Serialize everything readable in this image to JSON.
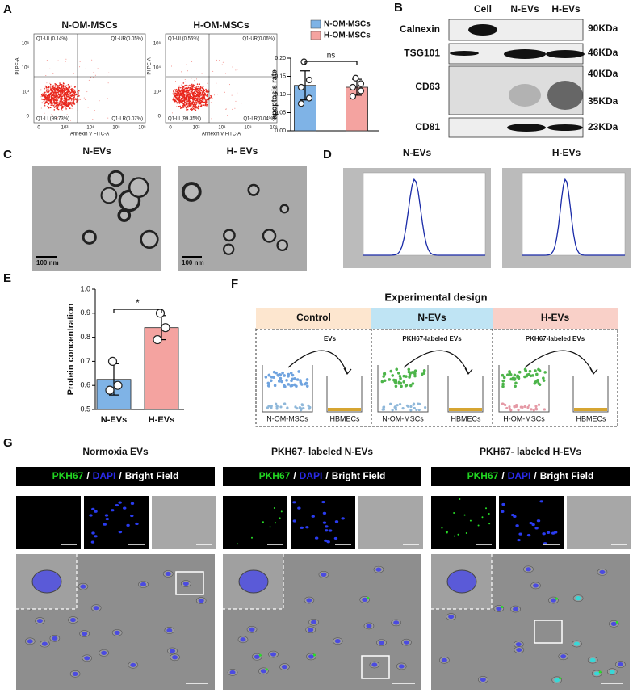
{
  "panel_letters": [
    "A",
    "B",
    "C",
    "D",
    "E",
    "F",
    "G"
  ],
  "flow": {
    "plots": [
      {
        "title": "N-OM-MSCs",
        "quadrants": [
          "Q1-UL(0.14%)",
          "Q1-UR(0.05%)",
          "Q1-LL(99.73%)",
          "Q1-LR(0.07%)"
        ]
      },
      {
        "title": "H-OM-MSCs",
        "quadrants": [
          "Q1-UL(0.56%)",
          "Q1-UR(0.06%)",
          "Q1-LL(99.35%)",
          "Q1-LR(0.04%)"
        ]
      }
    ],
    "x_label": "Annexin V FITC-A",
    "y_label": "PI PE-A",
    "x_ticks": [
      "0",
      "10³",
      "10⁴",
      "10⁵",
      "10⁶"
    ],
    "y_ticks": [
      "10⁵",
      "10⁴",
      "10³",
      "0"
    ]
  },
  "chart_data": [
    {
      "type": "bar",
      "ylabel": "apoptosis rate",
      "categories": [
        "N-OM-MSCs",
        "H-OM-MSCs"
      ],
      "colors": [
        "#7fb3e6",
        "#f4a3a0"
      ],
      "values": [
        0.125,
        0.12
      ],
      "errors": [
        0.04,
        0.022
      ],
      "points": [
        [
          0.19,
          0.14,
          0.12,
          0.09,
          0.075
        ],
        [
          0.145,
          0.13,
          0.12,
          0.11,
          0.095
        ]
      ],
      "ylim": [
        0,
        0.2
      ],
      "yticks": [
        {
          "value": 0,
          "label": "0.00"
        },
        0.05,
        {
          "value": 0.1,
          "label": "0.10"
        },
        0.15,
        {
          "value": 0.2,
          "label": "0.20"
        }
      ],
      "annotation": "ns",
      "legend": true
    },
    {
      "type": "bar",
      "ylabel": "Protein concentration",
      "categories": [
        "N-EVs",
        "H-EVs"
      ],
      "colors": [
        "#7fb3e6",
        "#f4a3a0"
      ],
      "values": [
        0.625,
        0.84
      ],
      "errors": [
        0.065,
        0.05
      ],
      "points": [
        [
          0.7,
          0.6,
          0.58
        ],
        [
          0.9,
          0.84,
          0.79
        ]
      ],
      "ylim": [
        0.5,
        1.0
      ],
      "yticks": [
        0.5,
        0.6,
        0.7,
        0.8,
        0.9,
        {
          "value": 1,
          "label": "1.0"
        }
      ],
      "annotation": "*",
      "legend": false
    }
  ],
  "western_blot": {
    "lanes": [
      "Cell",
      "N-EVs",
      "H-EVs"
    ],
    "proteins": [
      "Calnexin",
      "TSG101",
      "CD63",
      "CD81"
    ],
    "sizes": [
      "90KDa",
      "46KDa",
      "40KDa",
      "35KDa",
      "23KDa"
    ]
  },
  "tem": {
    "titles": [
      "N-EVs",
      "H- EVs"
    ],
    "scale_bar": "100 nm"
  },
  "nta": {
    "titles": [
      "N-EVs",
      "H-EVs"
    ]
  },
  "design": {
    "title": "Experimental design",
    "groups": [
      {
        "name": "Control",
        "treatment": "EVs",
        "donor": "N-OM-MSCs",
        "recipient": "HBMECs"
      },
      {
        "name": "N-EVs",
        "treatment": "PKH67-labeled EVs",
        "donor": "N-OM-MSCs",
        "recipient": "HBMECs"
      },
      {
        "name": "H-EVs",
        "treatment": "PKH67-labeled EVs",
        "donor": "H-OM-MSCs",
        "recipient": "HBMECs"
      }
    ]
  },
  "uptake": {
    "titles": [
      "Normoxia EVs",
      "PKH67- labeled N-EVs",
      "PKH67- labeled H-EVs"
    ],
    "channels": {
      "pkh67": "PKH67",
      "separator": "/",
      "dapi": "DAPI",
      "bright_field": "Bright Field"
    }
  }
}
